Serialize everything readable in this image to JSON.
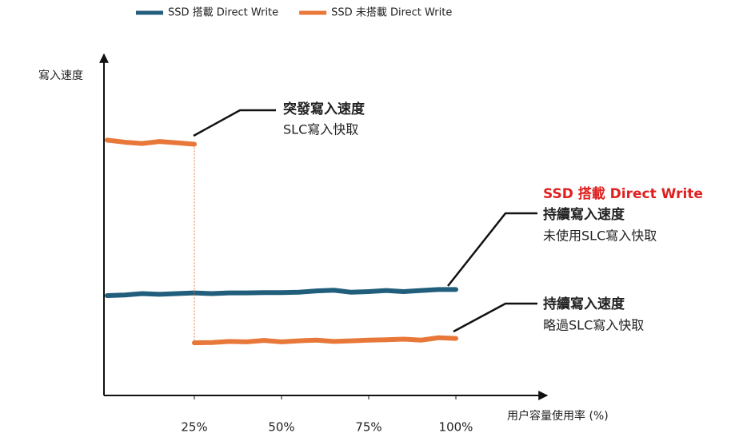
{
  "chart_data": {
    "type": "line",
    "xlabel": "用户容量使用率 (%)",
    "ylabel": "寫入速度",
    "x": [
      0,
      5,
      10,
      15,
      20,
      25,
      25,
      25,
      30,
      35,
      40,
      45,
      50,
      55,
      60,
      65,
      70,
      75,
      80,
      85,
      90,
      95,
      100
    ],
    "xlim": [
      0,
      125
    ],
    "xticks": [
      {
        "value": 25,
        "label": "25%"
      },
      {
        "value": 50,
        "label": "50%"
      },
      {
        "value": 75,
        "label": "75%"
      },
      {
        "value": 100,
        "label": "100%"
      }
    ],
    "ylim": [
      0,
      100
    ],
    "legend": "top",
    "series": [
      {
        "name": "SSD 搭載 Direct Write",
        "color": "#215e7c",
        "values": [
          29.4,
          29.6,
          30.0,
          29.8,
          30.0,
          30.2,
          30.2,
          30.2,
          30.0,
          30.2,
          30.2,
          30.3,
          30.3,
          30.4,
          30.8,
          31.0,
          30.4,
          30.6,
          30.9,
          30.6,
          30.9,
          31.2,
          31.2
        ]
      },
      {
        "name": "SSD 未搭載 Direct Write",
        "color": "#e8773a",
        "values": [
          75.2,
          74.6,
          74.2,
          74.8,
          74.4,
          74.0,
          null,
          15.5,
          15.6,
          15.9,
          15.8,
          16.2,
          15.8,
          16.1,
          16.3,
          15.9,
          16.1,
          16.3,
          16.4,
          16.6,
          16.3,
          17.0,
          16.8
        ]
      }
    ],
    "annotations": [
      {
        "text": [
          "突發寫入速度",
          "SLC寫入快取"
        ]
      },
      {
        "text": [
          "SSD 搭載 Direct Write",
          "持續寫入速度",
          "未使用SLC寫入快取"
        ]
      },
      {
        "text": [
          "持續寫入速度",
          "略過SLC寫入快取"
        ]
      }
    ]
  }
}
